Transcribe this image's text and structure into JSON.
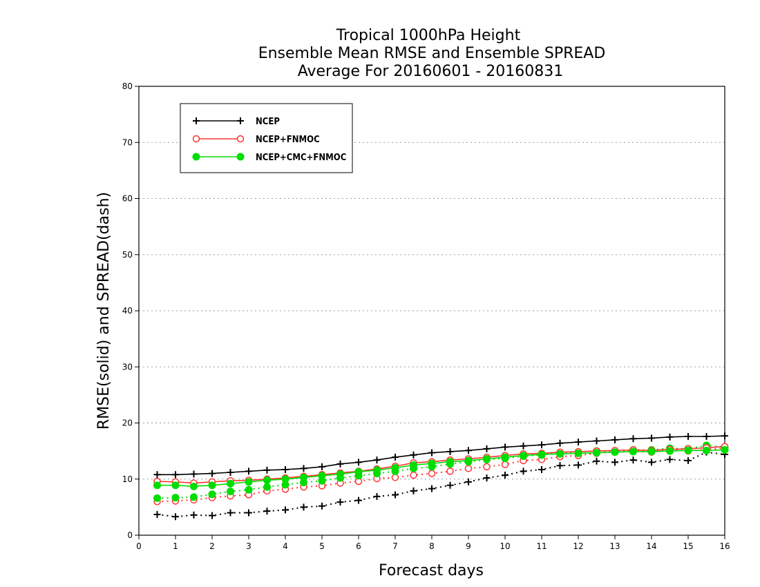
{
  "chart_data": {
    "type": "line",
    "title_lines": [
      "Tropical 1000hPa Height",
      "Ensemble Mean RMSE and Ensemble SPREAD",
      "Average For 20160601 - 20160831"
    ],
    "xlabel": "Forecast days",
    "ylabel": "RMSE(solid) and SPREAD(dash)",
    "xlim": [
      0,
      16
    ],
    "ylim": [
      0,
      80
    ],
    "x_ticks": [
      "0",
      "1",
      "2",
      "3",
      "4",
      "5",
      "6",
      "7",
      "8",
      "9",
      "10",
      "11",
      "12",
      "13",
      "14",
      "15",
      "16"
    ],
    "y_ticks": [
      "0",
      "10",
      "20",
      "30",
      "40",
      "50",
      "60",
      "70",
      "80"
    ],
    "grid": "horizontal dotted",
    "legend_position": "top-left",
    "x": [
      0.5,
      1,
      1.5,
      2,
      2.5,
      3,
      3.5,
      4,
      4.5,
      5,
      5.5,
      6,
      6.5,
      7,
      7.5,
      8,
      8.5,
      9,
      9.5,
      10,
      10.5,
      11,
      11.5,
      12,
      12.5,
      13,
      13.5,
      14,
      14.5,
      15,
      15.5,
      16
    ],
    "series": [
      {
        "name": "NCEP",
        "color": "#000000",
        "marker": "plus",
        "rmse": [
          10.8,
          10.8,
          10.9,
          11.0,
          11.2,
          11.4,
          11.6,
          11.7,
          11.9,
          12.2,
          12.7,
          13.0,
          13.4,
          13.9,
          14.3,
          14.7,
          14.9,
          15.1,
          15.4,
          15.7,
          15.9,
          16.1,
          16.4,
          16.6,
          16.8,
          17.0,
          17.2,
          17.3,
          17.5,
          17.6,
          17.6,
          17.7
        ],
        "spread": [
          3.7,
          3.3,
          3.6,
          3.5,
          4.0,
          4.0,
          4.3,
          4.5,
          5.0,
          5.2,
          5.9,
          6.2,
          6.9,
          7.2,
          7.9,
          8.3,
          8.9,
          9.5,
          10.2,
          10.7,
          11.4,
          11.7,
          12.4,
          12.5,
          13.2,
          13.0,
          13.4,
          13.0,
          13.5,
          13.3,
          14.8,
          14.4
        ]
      },
      {
        "name": "NCEP+FNMOC",
        "color": "#ff3333",
        "marker": "open-circle",
        "rmse": [
          9.6,
          9.5,
          9.3,
          9.5,
          9.7,
          9.8,
          10.0,
          10.2,
          10.5,
          10.8,
          11.1,
          11.4,
          11.8,
          12.3,
          12.9,
          13.1,
          13.4,
          13.6,
          13.9,
          14.2,
          14.5,
          14.6,
          14.8,
          14.9,
          15.0,
          15.1,
          15.2,
          15.1,
          15.3,
          15.4,
          15.6,
          15.8
        ],
        "spread": [
          6.0,
          6.1,
          6.3,
          6.7,
          7.0,
          7.2,
          7.9,
          8.2,
          8.6,
          8.8,
          9.3,
          9.6,
          10.1,
          10.3,
          10.7,
          11.0,
          11.4,
          11.9,
          12.2,
          12.6,
          13.3,
          13.5,
          14.0,
          14.2,
          14.6,
          14.9,
          15.0,
          14.8,
          15.2,
          15.0,
          15.3,
          15.5
        ]
      },
      {
        "name": "NCEP+CMC+FNMOC",
        "color": "#00dd00",
        "marker": "filled-circle",
        "rmse": [
          8.9,
          8.9,
          8.7,
          8.9,
          9.2,
          9.5,
          9.8,
          10.0,
          10.3,
          10.6,
          10.9,
          11.3,
          11.6,
          12.0,
          12.5,
          12.8,
          13.1,
          13.3,
          13.6,
          13.9,
          14.2,
          14.4,
          14.5,
          14.6,
          14.7,
          14.8,
          14.9,
          14.9,
          15.0,
          15.1,
          15.1,
          15.2
        ],
        "spread": [
          6.6,
          6.7,
          6.8,
          7.3,
          7.8,
          8.1,
          8.6,
          9.0,
          9.4,
          9.7,
          10.2,
          10.6,
          11.0,
          11.4,
          11.9,
          12.2,
          12.7,
          13.1,
          13.5,
          13.7,
          14.1,
          14.3,
          14.7,
          14.8,
          15.0,
          15.0,
          15.2,
          15.2,
          15.5,
          15.4,
          16.0,
          15.7
        ]
      }
    ]
  }
}
